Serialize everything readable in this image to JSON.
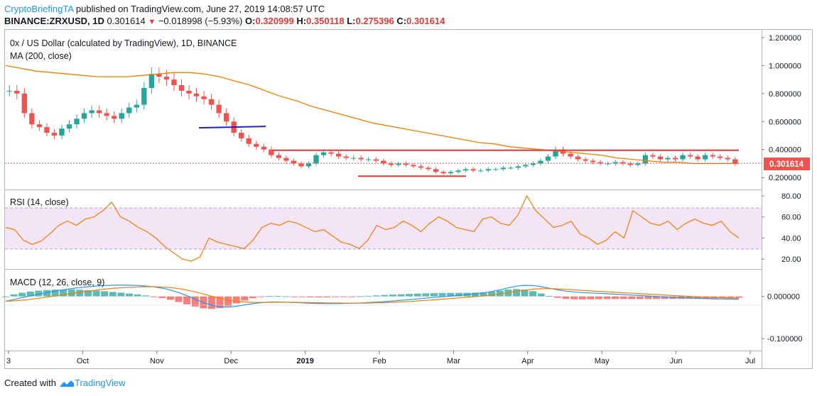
{
  "header": {
    "author": "CryptoBriefingTA",
    "published_text": " published on TradingView.com, June 27, 2019 14:08:57 UTC",
    "symbol": "BINANCE:ZRXUSD, 1D",
    "last": "0.301614",
    "change": "−0.018998 (−5.93%)",
    "o_label": "O:",
    "o": "0.320999",
    "h_label": "H:",
    "h": "0.350118",
    "l_label": "L:",
    "l": "0.275396",
    "c_label": "C:",
    "c": "0.301614"
  },
  "footer": {
    "created_with": "Created with",
    "brand": "TradingView"
  },
  "colors": {
    "up": "#26a69a",
    "down": "#ef5350",
    "ma": "#f57c00",
    "rsi": "#f57c00",
    "macd": "#2196f3",
    "signal": "#f57c00",
    "trend_red": "#e53935",
    "trend_blue": "#1e22c8"
  },
  "chart_data": [
    {
      "type": "candlestick",
      "title": "0x / US Dollar (calculated by TradingView), 1D, BINANCE",
      "indicator": "MA (200, close)",
      "y_ticks": [
        "1.200000",
        "1.000000",
        "0.800000",
        "0.600000",
        "0.400000",
        "0.200000"
      ],
      "ylim": [
        0.14,
        1.23
      ],
      "last_price_label": "0.301614",
      "x_ticks": [
        "3",
        "Oct",
        "Nov",
        "Dec",
        "2019",
        "Feb",
        "Mar",
        "Apr",
        "May",
        "Jun",
        "Jul"
      ],
      "close_series": [
        0.82,
        0.8,
        0.66,
        0.58,
        0.56,
        0.52,
        0.5,
        0.55,
        0.58,
        0.62,
        0.66,
        0.68,
        0.66,
        0.64,
        0.62,
        0.66,
        0.7,
        0.72,
        0.84,
        0.94,
        0.92,
        0.9,
        0.86,
        0.82,
        0.8,
        0.78,
        0.76,
        0.72,
        0.66,
        0.6,
        0.52,
        0.48,
        0.44,
        0.42,
        0.4,
        0.36,
        0.34,
        0.32,
        0.3,
        0.28,
        0.3,
        0.36,
        0.38,
        0.37,
        0.35,
        0.34,
        0.34,
        0.33,
        0.33,
        0.32,
        0.3,
        0.29,
        0.3,
        0.29,
        0.28,
        0.27,
        0.26,
        0.24,
        0.23,
        0.24,
        0.25,
        0.26,
        0.25,
        0.25,
        0.26,
        0.26,
        0.27,
        0.27,
        0.28,
        0.29,
        0.3,
        0.32,
        0.35,
        0.4,
        0.37,
        0.35,
        0.33,
        0.32,
        0.31,
        0.3,
        0.3,
        0.31,
        0.3,
        0.29,
        0.3,
        0.36,
        0.35,
        0.33,
        0.34,
        0.33,
        0.36,
        0.35,
        0.33,
        0.36,
        0.35,
        0.34,
        0.33,
        0.3
      ],
      "ma200_series": [
        1.0,
        0.98,
        0.96,
        0.95,
        0.94,
        0.93,
        0.92,
        0.92,
        0.92,
        0.93,
        0.94,
        0.95,
        0.95,
        0.94,
        0.92,
        0.89,
        0.86,
        0.82,
        0.78,
        0.75,
        0.71,
        0.68,
        0.65,
        0.62,
        0.59,
        0.57,
        0.55,
        0.53,
        0.51,
        0.49,
        0.47,
        0.45,
        0.44,
        0.42,
        0.41,
        0.4,
        0.39,
        0.38,
        0.37,
        0.36,
        0.34,
        0.33,
        0.32,
        0.31,
        0.31,
        0.3,
        0.3,
        0.3,
        0.3
      ],
      "resistance": 0.395,
      "support": 0.21,
      "blue_line": [
        0.555,
        0.565
      ]
    },
    {
      "type": "line",
      "title": "RSI (14, close)",
      "y_ticks": [
        "80.00",
        "60.00",
        "40.00",
        "20.00"
      ],
      "ylim": [
        12,
        84
      ],
      "band": [
        30,
        70
      ],
      "values": [
        50,
        48,
        38,
        34,
        37,
        44,
        52,
        56,
        52,
        58,
        60,
        66,
        74,
        60,
        56,
        50,
        46,
        40,
        32,
        26,
        20,
        18,
        22,
        40,
        36,
        34,
        32,
        30,
        38,
        50,
        54,
        52,
        56,
        54,
        50,
        46,
        48,
        42,
        36,
        34,
        30,
        38,
        52,
        48,
        50,
        56,
        52,
        46,
        54,
        60,
        56,
        50,
        48,
        46,
        58,
        60,
        54,
        52,
        62,
        80,
        66,
        58,
        50,
        52,
        56,
        44,
        40,
        34,
        38,
        46,
        40,
        66,
        60,
        54,
        52,
        56,
        48,
        54,
        58,
        54,
        52,
        56,
        46,
        40
      ]
    },
    {
      "type": "line",
      "title": "MACD (12, 26, close, 9)",
      "y_ticks": [
        "0.000000",
        "-0.100000"
      ],
      "ylim": [
        -0.125,
        0.06
      ]
    }
  ]
}
